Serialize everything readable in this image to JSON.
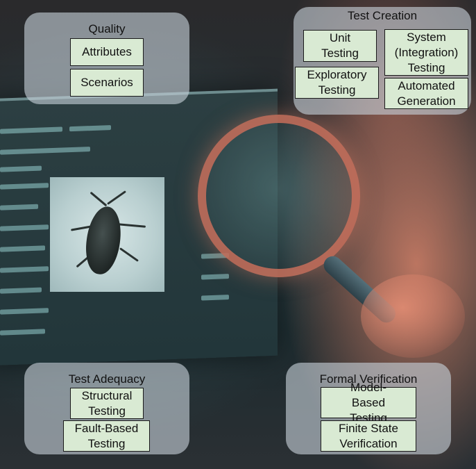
{
  "groups": {
    "quality": {
      "title": "Quality",
      "items": [
        "Attributes",
        "Scenarios"
      ]
    },
    "test_creation": {
      "title": "Test Creation",
      "items": [
        "Unit Testing",
        "System (Integration) Testing",
        "Exploratory Testing",
        "Automated Generation"
      ]
    },
    "test_adequacy": {
      "title": "Test Adequacy",
      "items": [
        "Structural Testing",
        "Fault-Based Testing"
      ]
    },
    "formal_verification": {
      "title": "Formal Verification",
      "items": [
        "Model-Based Testing",
        "Finite State Verification"
      ]
    }
  },
  "colors": {
    "group_fill": "#c6d0d8",
    "box_fill": "#d9ead3",
    "box_border": "#1a1a1a"
  }
}
